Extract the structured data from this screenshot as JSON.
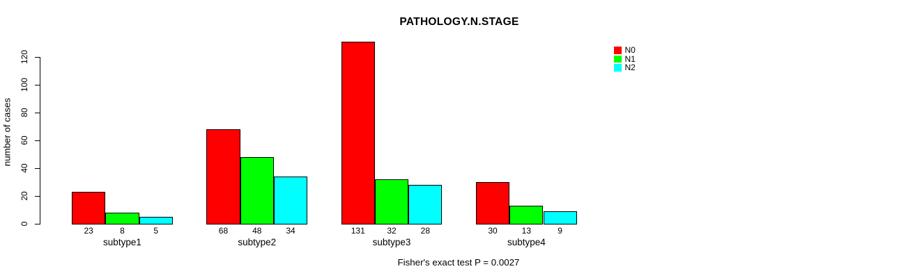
{
  "chart_data": {
    "type": "bar",
    "title": "PATHOLOGY.N.STAGE",
    "ylabel": "number of cases",
    "xlabel": "",
    "caption": "Fisher's exact test P = 0.0027",
    "categories": [
      "subtype1",
      "subtype2",
      "subtype3",
      "subtype4"
    ],
    "series": [
      {
        "name": "N0",
        "color": "#ff0000",
        "values": [
          23,
          68,
          131,
          30
        ]
      },
      {
        "name": "N1",
        "color": "#00ff00",
        "values": [
          8,
          48,
          32,
          13
        ]
      },
      {
        "name": "N2",
        "color": "#00ffff",
        "values": [
          5,
          34,
          28,
          9
        ]
      }
    ],
    "yticks": [
      0,
      20,
      40,
      60,
      80,
      100,
      120
    ],
    "ylim": [
      0,
      131
    ],
    "grid": false,
    "legend_position": "top-right",
    "bar_value_labels": true,
    "colors": {
      "axis": "#000000",
      "text": "#000000",
      "background": "#ffffff"
    }
  }
}
